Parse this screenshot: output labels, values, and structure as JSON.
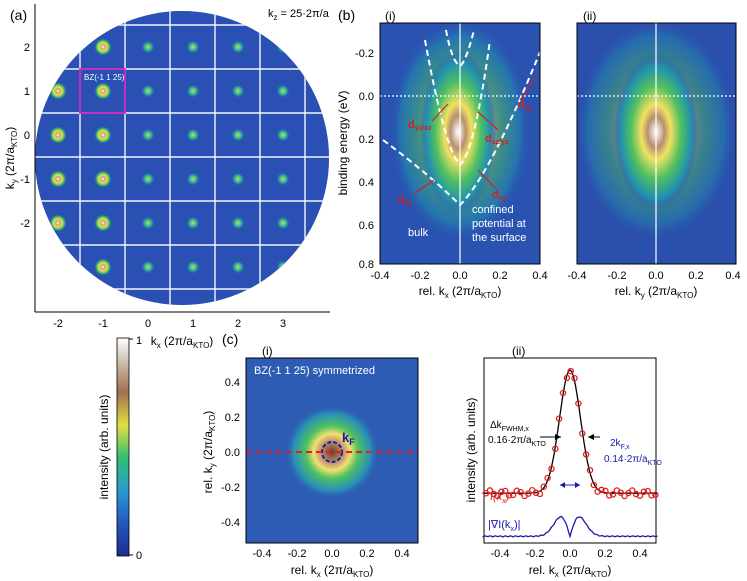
{
  "panel_a": {
    "label": "(a)",
    "kz_label": "k",
    "kz_sub": "z",
    "kz_value": " = 25·2π/a",
    "bz_box_label": "BZ(-1 1 25)",
    "x_label_main": "k",
    "x_label_sub": "x",
    "x_label_unit": " (2π/a",
    "x_label_unit_sub": "KTO",
    "x_label_close": ")",
    "y_label_main": "k",
    "y_label_sub": "y",
    "y_label_unit": " (2π/a",
    "y_label_unit_sub": "KTO",
    "y_label_close": ")",
    "x_ticks": [
      "-2",
      "-1",
      "0",
      "1",
      "2",
      "3"
    ],
    "y_ticks": [
      "2",
      "1",
      "0",
      "-1",
      "-2"
    ]
  },
  "panel_b": {
    "label": "(b)",
    "sub_i": "(i)",
    "sub_ii": "(ii)",
    "y_label": "binding energy (eV)",
    "y_ticks": [
      "-0.2",
      "0.0",
      "0.2",
      "0.4",
      "0.6",
      "0.8"
    ],
    "x_ticks": [
      "-0.4",
      "-0.2",
      "0.0",
      "0.2",
      "0.4"
    ],
    "x_label_i_main": "rel. k",
    "x_label_i_sub": "x",
    "x_label_ii_main": "rel. k",
    "x_label_ii_sub": "y",
    "x_label_unit": " (2π/a",
    "x_label_unit_sub": "KTO",
    "x_label_close": ")",
    "band_dxy": "d",
    "band_dxy_sub": "xy",
    "band_dyzxz": "d",
    "band_dyzxz_sub": "yz/xz",
    "band_dxzyz": "d",
    "band_dxzyz_sub": "xz/yz",
    "band_dxy2": "d",
    "band_dxy2_sub": "xy",
    "band_dxy3": "d",
    "band_dxy3_sub": "xy",
    "bulk_label": "bulk",
    "confined_1": "confined",
    "confined_2": "potential at",
    "confined_3": "the surface"
  },
  "colorbar": {
    "label": "intensity (arb. units)",
    "top": "1",
    "bottom": "0"
  },
  "panel_c": {
    "label": "(c)",
    "sub_i": "(i)",
    "sub_ii": "(ii)",
    "title_i": "BZ(-1 1 25) symmetrized",
    "kf_main": "k",
    "kf_sub": "F",
    "x_ticks": [
      "-0.4",
      "-0.2",
      "0.0",
      "0.2",
      "0.4"
    ],
    "y_ticks_i": [
      "0.4",
      "0.2",
      "0.0",
      "-0.2",
      "-0.4"
    ],
    "x_label_main": "rel. k",
    "x_label_sub": "x",
    "x_label_unit": " (2π/a",
    "x_label_unit_sub": "KTO",
    "x_label_close": ")",
    "y_label_i_main": "rel. k",
    "y_label_i_sub": "y",
    "y_label_ii": "intensity (arb. units)",
    "fwhm_main": "Δk",
    "fwhm_sub": "FWHM,x",
    "fwhm_value": "0.16·2π/a",
    "fwhm_value_sub": "KTO",
    "kfx_main": "2k",
    "kfx_sub": "F,x",
    "kfx_value": "0.14·2π/a",
    "kfx_value_sub": "KTO",
    "ikx_main": "I(k",
    "ikx_sub": "x",
    "ikx_close": ")",
    "grad_main": "|∇I(k",
    "grad_sub": "x",
    "grad_close": ")|"
  }
}
